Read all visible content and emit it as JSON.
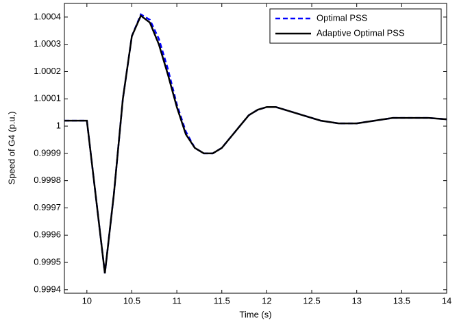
{
  "chart_data": {
    "type": "line",
    "xlabel": "Time (s)",
    "ylabel": "Speed of G4 (p.u.)",
    "xlim": [
      9.75,
      14
    ],
    "xticks": [
      10,
      10.5,
      11,
      11.5,
      12,
      12.5,
      13,
      13.5,
      14
    ],
    "ylim": [
      0.999387,
      1.00045
    ],
    "yticks": [
      0.9994,
      0.9995,
      0.9996,
      0.9997,
      0.9998,
      0.9999,
      1,
      1.0001,
      1.0002,
      1.0003,
      1.0004
    ],
    "legend": "top-right",
    "x": [
      9.75,
      10.0,
      10.2,
      10.3,
      10.4,
      10.5,
      10.6,
      10.7,
      10.8,
      10.9,
      11.0,
      11.1,
      11.2,
      11.3,
      11.4,
      11.5,
      11.6,
      11.7,
      11.8,
      11.9,
      12.0,
      12.1,
      12.2,
      12.4,
      12.6,
      12.8,
      13.0,
      13.2,
      13.4,
      13.6,
      13.8,
      14.0
    ],
    "series": [
      {
        "name": "Optimal PSS",
        "color": "#0000ff",
        "dash": true,
        "values": [
          1.00002,
          1.00002,
          0.99946,
          0.99975,
          1.0001,
          1.00033,
          1.00041,
          1.00039,
          1.00032,
          1.00021,
          1.00008,
          0.99998,
          0.99992,
          0.9999,
          0.9999,
          0.99992,
          0.99996,
          1.0,
          1.00004,
          1.00006,
          1.00007,
          1.00007,
          1.00006,
          1.00004,
          1.00002,
          1.00001,
          1.00001,
          1.00002,
          1.00003,
          1.00003,
          1.00003,
          1.000025
        ]
      },
      {
        "name": "Adaptive Optimal PSS",
        "color": "#000000",
        "dash": false,
        "values": [
          1.00002,
          1.00002,
          0.99946,
          0.99975,
          1.0001,
          1.00033,
          1.000405,
          1.00038,
          1.0003,
          1.00019,
          1.00007,
          0.99997,
          0.99992,
          0.9999,
          0.9999,
          0.99992,
          0.99996,
          1.0,
          1.00004,
          1.00006,
          1.00007,
          1.00007,
          1.00006,
          1.00004,
          1.00002,
          1.00001,
          1.00001,
          1.00002,
          1.00003,
          1.00003,
          1.00003,
          1.000025
        ]
      }
    ]
  }
}
